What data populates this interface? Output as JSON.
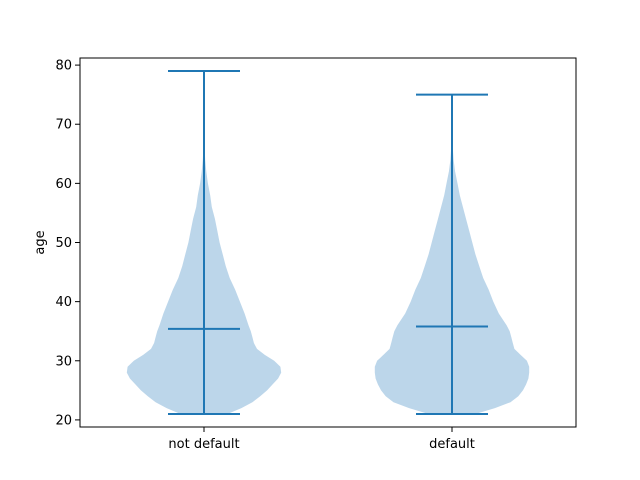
{
  "chart_data": {
    "type": "violin",
    "title": "",
    "xlabel": "",
    "ylabel": "age",
    "categories": [
      "not default",
      "default"
    ],
    "ylim": [
      18.8,
      81.2
    ],
    "yticks": [
      20,
      30,
      40,
      50,
      60,
      70,
      80
    ],
    "grid": false,
    "colors": {
      "body": "#bcd6ea",
      "lines": "#1f77b4",
      "axes": "#000000"
    },
    "series": [
      {
        "category": "not default",
        "min": 21,
        "max": 79,
        "mean": 35.4,
        "density": [
          [
            21,
            0.3
          ],
          [
            22,
            0.48
          ],
          [
            23,
            0.62
          ],
          [
            24,
            0.72
          ],
          [
            25,
            0.81
          ],
          [
            26,
            0.88
          ],
          [
            27,
            0.95
          ],
          [
            28,
            0.99
          ],
          [
            29,
            0.98
          ],
          [
            30,
            0.9
          ],
          [
            31,
            0.78
          ],
          [
            32,
            0.68
          ],
          [
            33,
            0.64
          ],
          [
            34,
            0.62
          ],
          [
            35,
            0.6
          ],
          [
            36,
            0.57
          ],
          [
            38,
            0.52
          ],
          [
            40,
            0.46
          ],
          [
            42,
            0.4
          ],
          [
            44,
            0.33
          ],
          [
            46,
            0.28
          ],
          [
            48,
            0.24
          ],
          [
            50,
            0.2
          ],
          [
            52,
            0.17
          ],
          [
            54,
            0.14
          ],
          [
            56,
            0.1
          ],
          [
            58,
            0.08
          ],
          [
            60,
            0.05
          ],
          [
            62,
            0.03
          ],
          [
            64,
            0.015
          ],
          [
            66,
            0.008
          ],
          [
            70,
            0.004
          ],
          [
            75,
            0.002
          ],
          [
            79,
            0.001
          ]
        ]
      },
      {
        "category": "default",
        "min": 21,
        "max": 75,
        "mean": 35.8,
        "density": [
          [
            21,
            0.3
          ],
          [
            22,
            0.55
          ],
          [
            23,
            0.75
          ],
          [
            24,
            0.85
          ],
          [
            25,
            0.91
          ],
          [
            26,
            0.95
          ],
          [
            27,
            0.98
          ],
          [
            28,
            0.99
          ],
          [
            29,
            0.99
          ],
          [
            30,
            0.96
          ],
          [
            31,
            0.88
          ],
          [
            32,
            0.8
          ],
          [
            33,
            0.78
          ],
          [
            34,
            0.76
          ],
          [
            35,
            0.74
          ],
          [
            36,
            0.7
          ],
          [
            38,
            0.6
          ],
          [
            40,
            0.53
          ],
          [
            42,
            0.47
          ],
          [
            44,
            0.4
          ],
          [
            46,
            0.35
          ],
          [
            48,
            0.3
          ],
          [
            50,
            0.26
          ],
          [
            52,
            0.22
          ],
          [
            54,
            0.18
          ],
          [
            56,
            0.14
          ],
          [
            58,
            0.1
          ],
          [
            60,
            0.07
          ],
          [
            62,
            0.04
          ],
          [
            64,
            0.02
          ],
          [
            66,
            0.01
          ],
          [
            70,
            0.004
          ],
          [
            75,
            0.002
          ]
        ]
      }
    ]
  }
}
